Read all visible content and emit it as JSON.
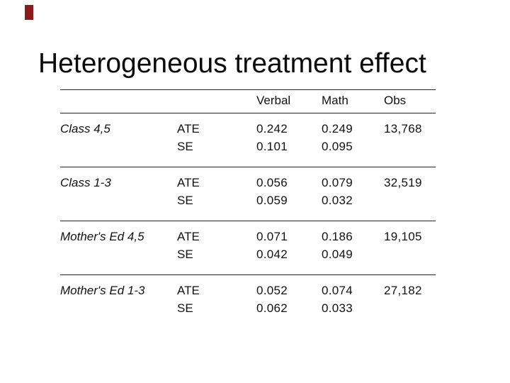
{
  "slide": {
    "title": "Heterogeneous treatment effect"
  },
  "accent_color": "#8b1a1a",
  "table": {
    "headers": {
      "verbal": "Verbal",
      "math": "Math",
      "obs": "Obs"
    },
    "groups": [
      {
        "label": "Class 4,5",
        "rows": [
          {
            "stat": "ATE",
            "verbal": "0.242",
            "math": "0.249",
            "obs": "13,768"
          },
          {
            "stat": "SE",
            "verbal": "0.101",
            "math": "0.095",
            "obs": ""
          }
        ]
      },
      {
        "label": "Class 1-3",
        "rows": [
          {
            "stat": "ATE",
            "verbal": "0.056",
            "math": "0.079",
            "obs": "32,519"
          },
          {
            "stat": "SE",
            "verbal": "0.059",
            "math": "0.032",
            "obs": ""
          }
        ]
      },
      {
        "label": "Mother's Ed 4,5",
        "rows": [
          {
            "stat": "ATE",
            "verbal": "0.071",
            "math": "0.186",
            "obs": "19,105"
          },
          {
            "stat": "SE",
            "verbal": "0.042",
            "math": "0.049",
            "obs": ""
          }
        ]
      },
      {
        "label": "Mother's Ed 1-3",
        "rows": [
          {
            "stat": "ATE",
            "verbal": "0.052",
            "math": "0.074",
            "obs": "27,182"
          },
          {
            "stat": "SE",
            "verbal": "0.062",
            "math": "0.033",
            "obs": ""
          }
        ]
      }
    ]
  }
}
